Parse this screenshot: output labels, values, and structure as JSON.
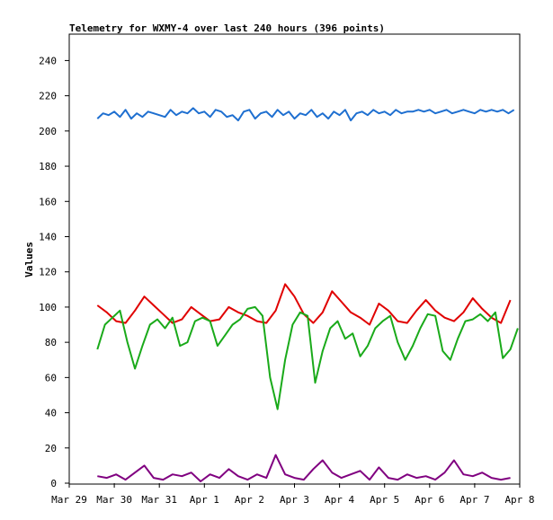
{
  "chart_data": {
    "type": "line",
    "title": "Telemetry for WXMY-4 over last 240 hours (396 points)",
    "xlabel": "",
    "ylabel": "Values",
    "xlim": [
      "2024-03-29",
      "2024-04-08"
    ],
    "ylim": [
      0,
      255
    ],
    "grid": false,
    "legend": "none",
    "x_ticks": [
      "Mar 29",
      "Mar 30",
      "Mar 31",
      "Apr 1",
      "Apr 2",
      "Apr 3",
      "Apr 4",
      "Apr 5",
      "Apr 6",
      "Apr 7",
      "Apr 8"
    ],
    "y_ticks": [
      0,
      20,
      40,
      60,
      80,
      100,
      120,
      140,
      160,
      180,
      200,
      220,
      240
    ],
    "series": [
      {
        "color": "#1e6fd0",
        "x": [
          "2024-03-29T15:00",
          "2024-03-29T18:00",
          "2024-03-29T21:00",
          "2024-03-30T00:00",
          "2024-03-30T03:00",
          "2024-03-30T06:00",
          "2024-03-30T09:00",
          "2024-03-30T12:00",
          "2024-03-30T15:00",
          "2024-03-30T18:00",
          "2024-03-30T21:00",
          "2024-03-31T00:00",
          "2024-03-31T03:00",
          "2024-03-31T06:00",
          "2024-03-31T09:00",
          "2024-03-31T12:00",
          "2024-03-31T15:00",
          "2024-03-31T18:00",
          "2024-03-31T21:00",
          "2024-04-01T00:00",
          "2024-04-01T03:00",
          "2024-04-01T06:00",
          "2024-04-01T09:00",
          "2024-04-01T12:00",
          "2024-04-01T15:00",
          "2024-04-01T18:00",
          "2024-04-01T21:00",
          "2024-04-02T00:00",
          "2024-04-02T03:00",
          "2024-04-02T06:00",
          "2024-04-02T09:00",
          "2024-04-02T12:00",
          "2024-04-02T15:00",
          "2024-04-02T18:00",
          "2024-04-02T21:00",
          "2024-04-03T00:00",
          "2024-04-03T03:00",
          "2024-04-03T06:00",
          "2024-04-03T09:00",
          "2024-04-03T12:00",
          "2024-04-03T15:00",
          "2024-04-03T18:00",
          "2024-04-03T21:00",
          "2024-04-04T00:00",
          "2024-04-04T03:00",
          "2024-04-04T06:00",
          "2024-04-04T09:00",
          "2024-04-04T12:00",
          "2024-04-04T15:00",
          "2024-04-04T18:00",
          "2024-04-04T21:00",
          "2024-04-05T00:00",
          "2024-04-05T03:00",
          "2024-04-05T06:00",
          "2024-04-05T09:00",
          "2024-04-05T12:00",
          "2024-04-05T15:00",
          "2024-04-05T18:00",
          "2024-04-05T21:00",
          "2024-04-06T00:00",
          "2024-04-06T03:00",
          "2024-04-06T06:00",
          "2024-04-06T09:00",
          "2024-04-06T12:00",
          "2024-04-06T15:00",
          "2024-04-06T18:00",
          "2024-04-06T21:00",
          "2024-04-07T00:00",
          "2024-04-07T03:00",
          "2024-04-07T06:00",
          "2024-04-07T09:00",
          "2024-04-07T12:00",
          "2024-04-07T15:00",
          "2024-04-07T18:00",
          "2024-04-07T21:00"
        ],
        "y": [
          207,
          210,
          209,
          211,
          208,
          212,
          207,
          210,
          208,
          211,
          210,
          209,
          208,
          212,
          209,
          211,
          210,
          213,
          210,
          211,
          208,
          212,
          211,
          208,
          209,
          206,
          211,
          212,
          207,
          210,
          211,
          208,
          212,
          209,
          211,
          207,
          210,
          209,
          212,
          208,
          210,
          207,
          211,
          209,
          212,
          206,
          210,
          211,
          209,
          212,
          210,
          211,
          209,
          212,
          210,
          211,
          211,
          212,
          211,
          212,
          210,
          211,
          212,
          210,
          211,
          212,
          211,
          210,
          212,
          211,
          212,
          211,
          212,
          210,
          212
        ]
      },
      {
        "color": "#e00000",
        "x": [
          "2024-03-29T15:00",
          "2024-03-29T20:00",
          "2024-03-30T01:00",
          "2024-03-30T06:00",
          "2024-03-30T11:00",
          "2024-03-30T16:00",
          "2024-03-30T21:00",
          "2024-03-31T02:00",
          "2024-03-31T07:00",
          "2024-03-31T12:00",
          "2024-03-31T17:00",
          "2024-03-31T22:00",
          "2024-04-01T03:00",
          "2024-04-01T08:00",
          "2024-04-01T13:00",
          "2024-04-01T18:00",
          "2024-04-01T23:00",
          "2024-04-02T04:00",
          "2024-04-02T09:00",
          "2024-04-02T14:00",
          "2024-04-02T19:00",
          "2024-04-03T00:00",
          "2024-04-03T05:00",
          "2024-04-03T10:00",
          "2024-04-03T15:00",
          "2024-04-03T20:00",
          "2024-04-04T01:00",
          "2024-04-04T06:00",
          "2024-04-04T11:00",
          "2024-04-04T16:00",
          "2024-04-04T21:00",
          "2024-04-05T02:00",
          "2024-04-05T07:00",
          "2024-04-05T12:00",
          "2024-04-05T17:00",
          "2024-04-05T22:00",
          "2024-04-06T03:00",
          "2024-04-06T08:00",
          "2024-04-06T13:00",
          "2024-04-06T18:00",
          "2024-04-06T23:00",
          "2024-04-07T04:00",
          "2024-04-07T09:00",
          "2024-04-07T14:00",
          "2024-04-07T19:00"
        ],
        "y": [
          101,
          97,
          92,
          91,
          98,
          106,
          101,
          96,
          91,
          93,
          100,
          96,
          92,
          93,
          100,
          97,
          95,
          92,
          91,
          98,
          113,
          106,
          96,
          91,
          97,
          109,
          103,
          97,
          94,
          90,
          102,
          98,
          92,
          91,
          98,
          104,
          98,
          94,
          92,
          97,
          105,
          99,
          94,
          91,
          104
        ]
      },
      {
        "color": "#1aaa1a",
        "x": [
          "2024-03-29T15:00",
          "2024-03-29T19:00",
          "2024-03-29T23:00",
          "2024-03-30T03:00",
          "2024-03-30T07:00",
          "2024-03-30T11:00",
          "2024-03-30T15:00",
          "2024-03-30T19:00",
          "2024-03-30T23:00",
          "2024-03-31T03:00",
          "2024-03-31T07:00",
          "2024-03-31T11:00",
          "2024-03-31T15:00",
          "2024-03-31T19:00",
          "2024-03-31T23:00",
          "2024-04-01T03:00",
          "2024-04-01T07:00",
          "2024-04-01T11:00",
          "2024-04-01T15:00",
          "2024-04-01T19:00",
          "2024-04-01T23:00",
          "2024-04-02T03:00",
          "2024-04-02T07:00",
          "2024-04-02T11:00",
          "2024-04-02T15:00",
          "2024-04-02T19:00",
          "2024-04-02T23:00",
          "2024-04-03T03:00",
          "2024-04-03T07:00",
          "2024-04-03T11:00",
          "2024-04-03T15:00",
          "2024-04-03T19:00",
          "2024-04-03T23:00",
          "2024-04-04T03:00",
          "2024-04-04T07:00",
          "2024-04-04T11:00",
          "2024-04-04T15:00",
          "2024-04-04T19:00",
          "2024-04-04T23:00",
          "2024-04-05T03:00",
          "2024-04-05T07:00",
          "2024-04-05T11:00",
          "2024-04-05T15:00",
          "2024-04-05T19:00",
          "2024-04-05T23:00",
          "2024-04-06T03:00",
          "2024-04-06T07:00",
          "2024-04-06T11:00",
          "2024-04-06T15:00",
          "2024-04-06T19:00",
          "2024-04-06T23:00",
          "2024-04-07T03:00",
          "2024-04-07T07:00",
          "2024-04-07T11:00",
          "2024-04-07T15:00",
          "2024-04-07T19:00",
          "2024-04-07T23:00"
        ],
        "y": [
          76,
          90,
          94,
          98,
          80,
          65,
          78,
          90,
          93,
          88,
          94,
          78,
          80,
          92,
          94,
          92,
          78,
          84,
          90,
          93,
          99,
          100,
          95,
          60,
          42,
          70,
          90,
          97,
          95,
          57,
          75,
          88,
          92,
          82,
          85,
          72,
          78,
          88,
          92,
          95,
          80,
          70,
          78,
          88,
          96,
          95,
          75,
          70,
          82,
          92,
          93,
          96,
          92,
          97,
          71,
          76,
          88
        ]
      },
      {
        "color": "#800080",
        "x": [
          "2024-03-29T15:00",
          "2024-03-29T20:00",
          "2024-03-30T01:00",
          "2024-03-30T06:00",
          "2024-03-30T11:00",
          "2024-03-30T16:00",
          "2024-03-30T21:00",
          "2024-03-31T02:00",
          "2024-03-31T07:00",
          "2024-03-31T12:00",
          "2024-03-31T17:00",
          "2024-03-31T22:00",
          "2024-04-01T03:00",
          "2024-04-01T08:00",
          "2024-04-01T13:00",
          "2024-04-01T18:00",
          "2024-04-01T23:00",
          "2024-04-02T04:00",
          "2024-04-02T09:00",
          "2024-04-02T14:00",
          "2024-04-02T19:00",
          "2024-04-03T00:00",
          "2024-04-03T05:00",
          "2024-04-03T10:00",
          "2024-04-03T15:00",
          "2024-04-03T20:00",
          "2024-04-04T01:00",
          "2024-04-04T06:00",
          "2024-04-04T11:00",
          "2024-04-04T16:00",
          "2024-04-04T21:00",
          "2024-04-05T02:00",
          "2024-04-05T07:00",
          "2024-04-05T12:00",
          "2024-04-05T17:00",
          "2024-04-05T22:00",
          "2024-04-06T03:00",
          "2024-04-06T08:00",
          "2024-04-06T13:00",
          "2024-04-06T18:00",
          "2024-04-06T23:00",
          "2024-04-07T04:00",
          "2024-04-07T09:00",
          "2024-04-07T14:00",
          "2024-04-07T19:00"
        ],
        "y": [
          4,
          3,
          5,
          2,
          6,
          10,
          3,
          2,
          5,
          4,
          6,
          1,
          5,
          3,
          8,
          4,
          2,
          5,
          3,
          16,
          5,
          3,
          2,
          8,
          13,
          6,
          3,
          5,
          7,
          2,
          9,
          3,
          2,
          5,
          3,
          4,
          2,
          6,
          13,
          5,
          4,
          6,
          3,
          2,
          3
        ]
      }
    ]
  }
}
